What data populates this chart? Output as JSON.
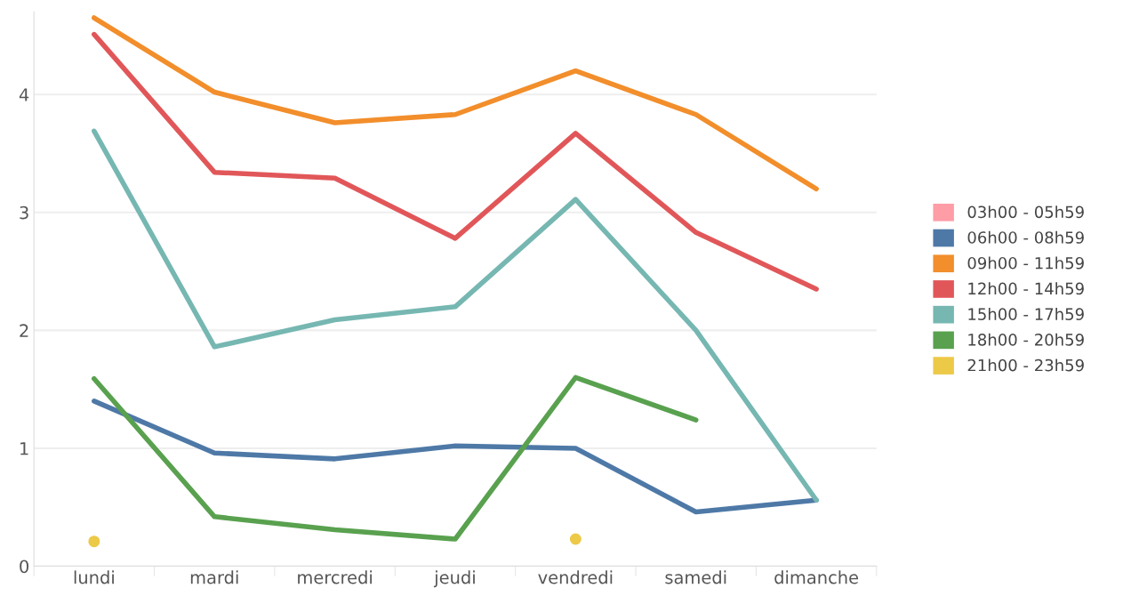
{
  "chart_data": {
    "type": "line",
    "categories": [
      "lundi",
      "mardi",
      "mercredi",
      "jeudi",
      "vendredi",
      "samedi",
      "dimanche"
    ],
    "series": [
      {
        "name": "03h00 - 05h59",
        "color": "#ff9da7",
        "values": [
          null,
          null,
          null,
          null,
          null,
          null,
          null
        ]
      },
      {
        "name": "06h00 - 08h59",
        "color": "#4e79a7",
        "values": [
          1.4,
          0.96,
          0.91,
          1.02,
          1.0,
          0.46,
          0.56
        ]
      },
      {
        "name": "09h00 - 11h59",
        "color": "#f28e2b",
        "values": [
          4.65,
          4.02,
          3.76,
          3.83,
          4.2,
          3.83,
          3.2
        ]
      },
      {
        "name": "12h00 - 14h59",
        "color": "#e15759",
        "values": [
          4.51,
          3.34,
          3.29,
          2.78,
          3.67,
          2.83,
          2.35
        ]
      },
      {
        "name": "15h00 - 17h59",
        "color": "#76b7b2",
        "values": [
          3.69,
          1.86,
          2.09,
          2.2,
          3.11,
          2.0,
          0.56
        ]
      },
      {
        "name": "18h00 - 20h59",
        "color": "#59a14f",
        "values": [
          1.59,
          0.42,
          0.31,
          0.23,
          1.6,
          1.24,
          null
        ]
      },
      {
        "name": "21h00 - 23h59",
        "color": "#edc948",
        "type": "scatter",
        "marker": "circle",
        "values": [
          0.21,
          null,
          null,
          null,
          0.23,
          null,
          null
        ]
      }
    ],
    "ylim": [
      0,
      4.7
    ],
    "yticks": [
      0,
      1,
      2,
      3,
      4
    ],
    "grid": "y",
    "legend": "right",
    "marker": "none",
    "line_style": "solid"
  }
}
